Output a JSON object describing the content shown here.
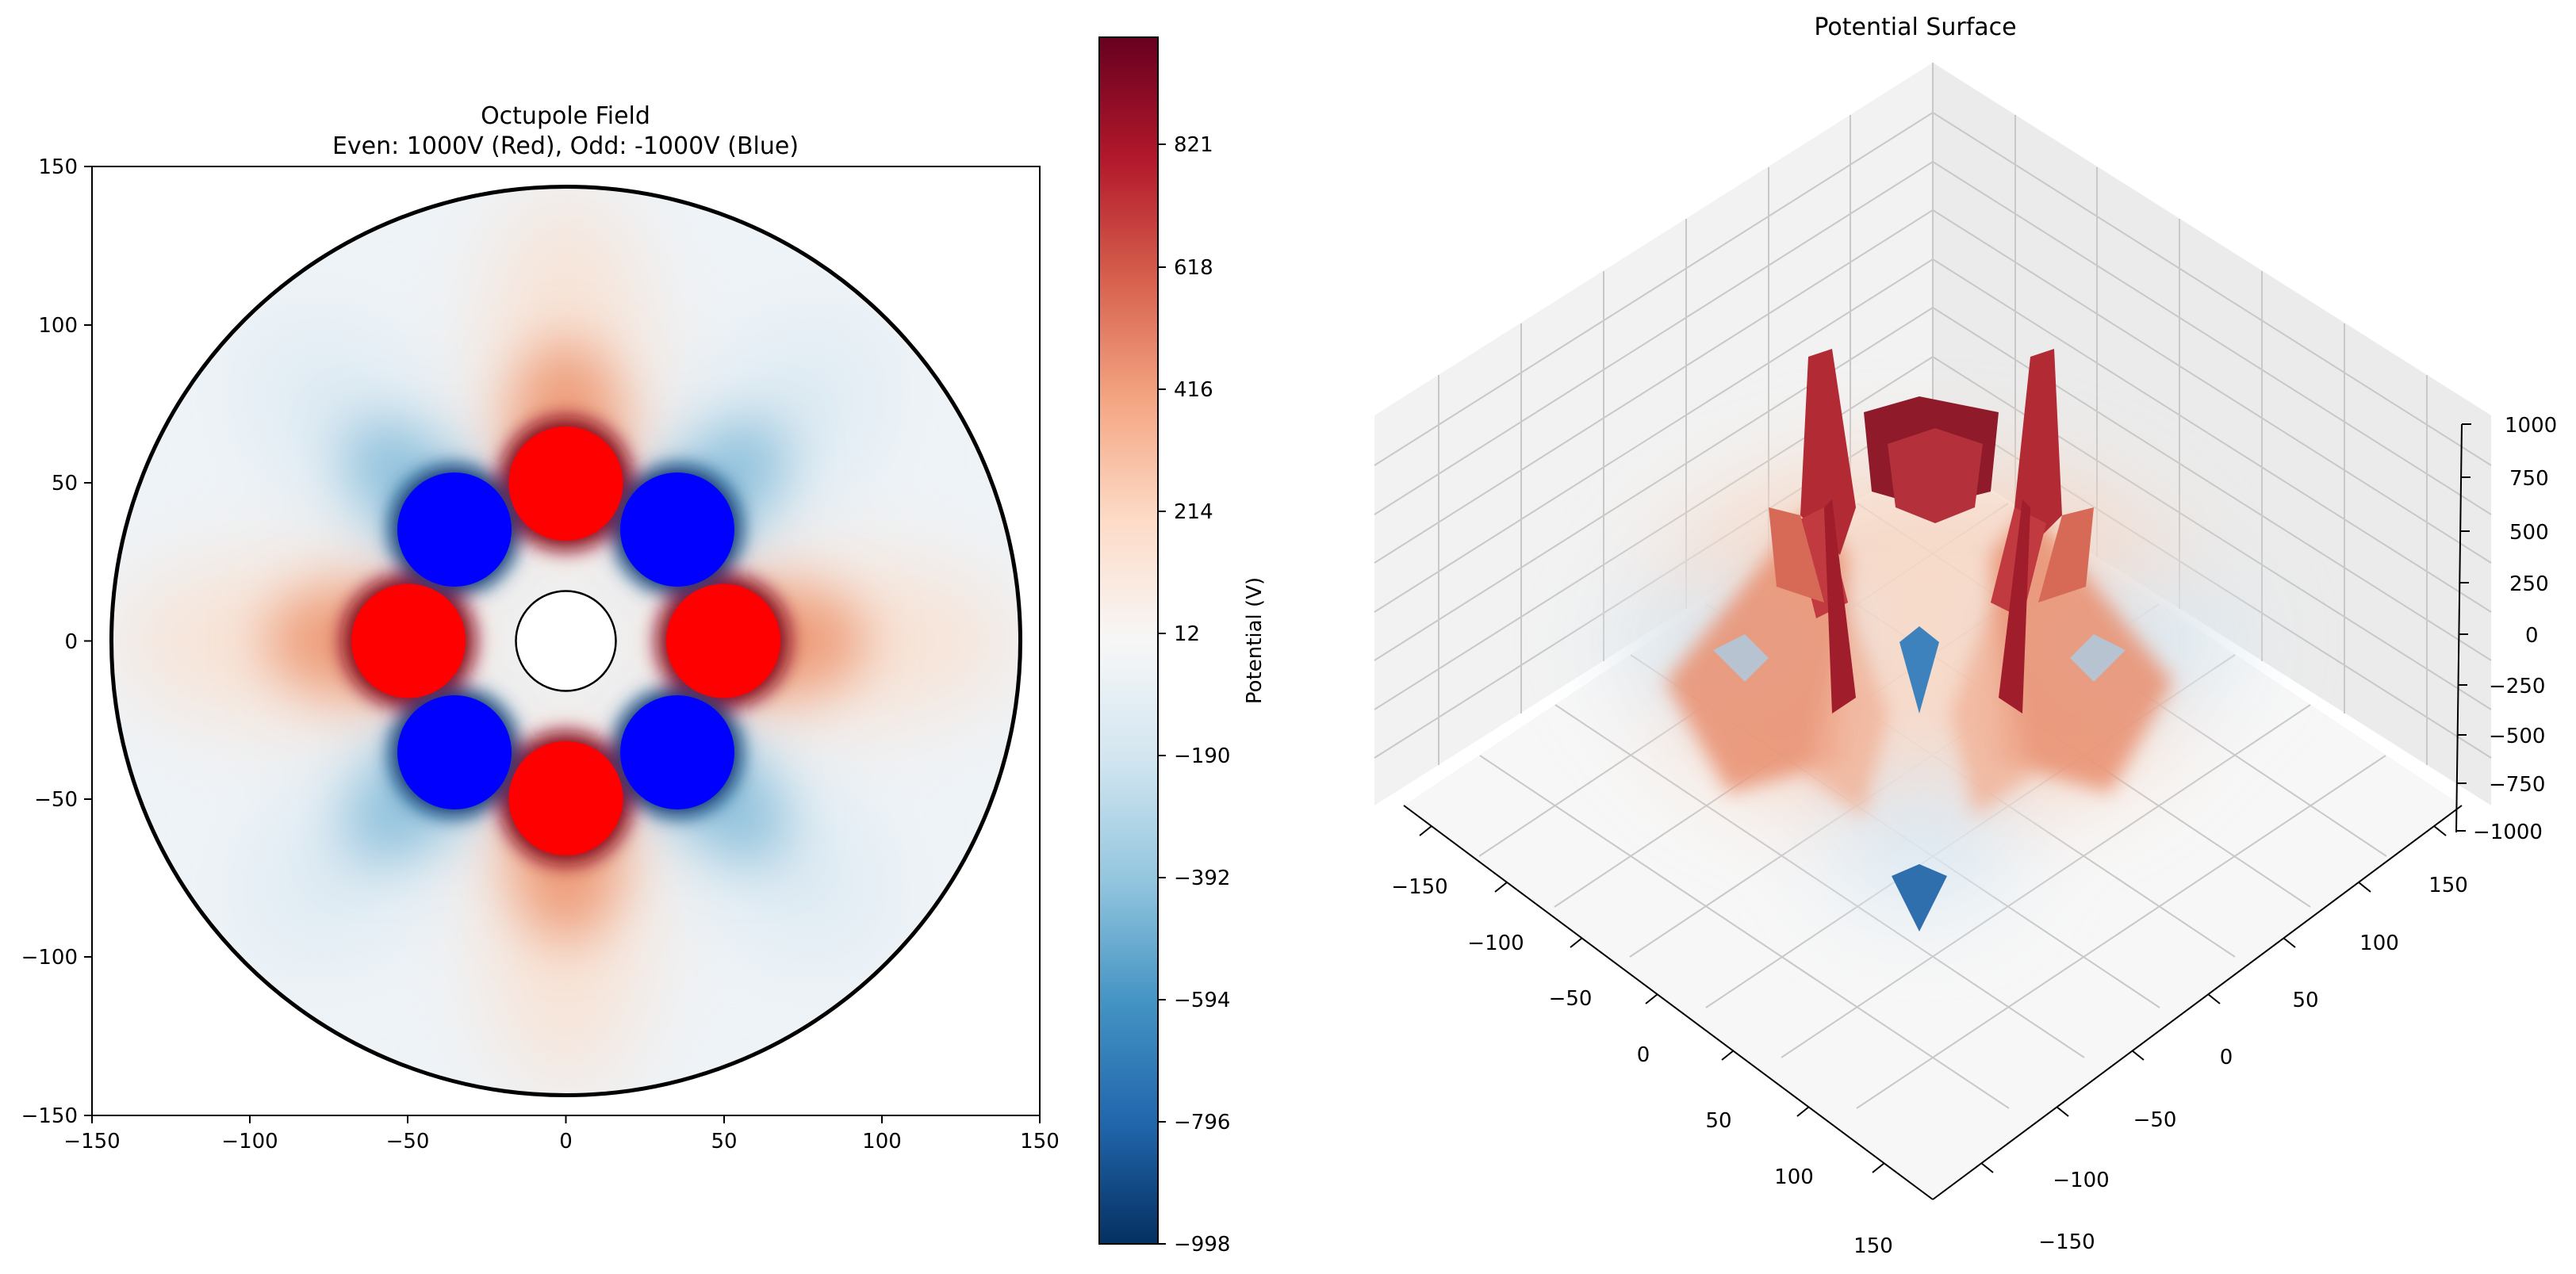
{
  "chart_data": [
    {
      "type": "contour",
      "title": "Octupole Field",
      "subtitle": "Even: 1000V (Red), Odd: -1000V (Blue)",
      "xlim": [
        -150,
        150
      ],
      "ylim": [
        -150,
        150
      ],
      "xticks": [
        -150,
        -100,
        -50,
        0,
        50,
        100,
        150
      ],
      "yticks": [
        -150,
        -100,
        -50,
        0,
        50,
        100,
        150
      ],
      "xtick_labels": [
        "−150",
        "−100",
        "−50",
        "0",
        "50",
        "100",
        "150"
      ],
      "ytick_labels": [
        "−150",
        "−100",
        "−50",
        "0",
        "50",
        "100",
        "150"
      ],
      "boundary_radius": 144,
      "center_rod_radius": 16,
      "electrodes": [
        {
          "x": 0,
          "y": 50,
          "r": 18,
          "voltage": 1000,
          "color": "#ff0000"
        },
        {
          "x": 35.4,
          "y": 35.4,
          "r": 18,
          "voltage": -1000,
          "color": "#0000ff"
        },
        {
          "x": 50,
          "y": 0,
          "r": 18,
          "voltage": 1000,
          "color": "#ff0000"
        },
        {
          "x": 35.4,
          "y": -35.4,
          "r": 18,
          "voltage": -1000,
          "color": "#0000ff"
        },
        {
          "x": 0,
          "y": -50,
          "r": 18,
          "voltage": 1000,
          "color": "#ff0000"
        },
        {
          "x": -35.4,
          "y": -35.4,
          "r": 18,
          "voltage": -1000,
          "color": "#0000ff"
        },
        {
          "x": -50,
          "y": 0,
          "r": 18,
          "voltage": 1000,
          "color": "#ff0000"
        },
        {
          "x": -35.4,
          "y": 35.4,
          "r": 18,
          "voltage": -1000,
          "color": "#0000ff"
        }
      ]
    },
    {
      "type": "colorbar",
      "label": "Potential (V)",
      "range": [
        -998,
        998
      ],
      "ticks": [
        -998,
        -796,
        -594,
        -392,
        -190,
        12,
        214,
        416,
        618,
        821
      ],
      "tick_labels": [
        "−998",
        "−796",
        "−594",
        "−392",
        "−190",
        "12",
        "214",
        "416",
        "618",
        "821"
      ],
      "colormap": "RdBu_r"
    },
    {
      "type": "surface",
      "title": "Potential Surface",
      "x_ticks": [
        -150,
        -100,
        -50,
        0,
        50,
        100,
        150
      ],
      "x_tick_labels": [
        "−150",
        "−100",
        "−50",
        "0",
        "50",
        "100",
        "150"
      ],
      "y_ticks": [
        -150,
        -100,
        -50,
        0,
        50,
        100,
        150
      ],
      "y_tick_labels": [
        "−150",
        "−100",
        "−50",
        "0",
        "50",
        "100",
        "150"
      ],
      "z_ticks": [
        -1000,
        -750,
        -500,
        -250,
        0,
        250,
        500,
        750,
        1000
      ],
      "z_tick_labels": [
        "−1000",
        "−750",
        "−500",
        "−250",
        "0",
        "250",
        "500",
        "750",
        "1000"
      ],
      "zlim": [
        -1000,
        1000
      ]
    }
  ]
}
